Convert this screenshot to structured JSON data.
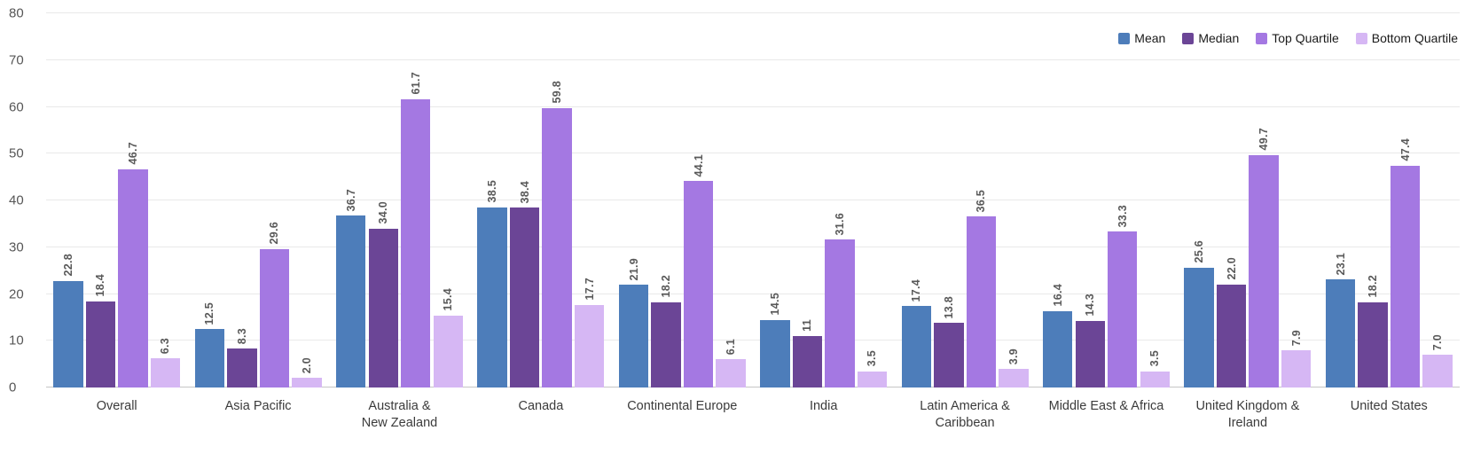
{
  "chart_data": {
    "type": "bar",
    "title": "",
    "xlabel": "",
    "ylabel": "",
    "ylim": [
      0,
      80
    ],
    "yticks": [
      "0",
      "10",
      "20",
      "30",
      "40",
      "50",
      "60",
      "70",
      "80"
    ],
    "grid": "horizontal",
    "legend_position": "top-right",
    "value_labels_rotated": true,
    "categories": [
      {
        "label": "Overall",
        "lines": [
          "Overall"
        ]
      },
      {
        "label": "Asia Pacific",
        "lines": [
          "Asia Pacific"
        ]
      },
      {
        "label": "Australia & New Zealand",
        "lines": [
          "Australia &",
          "New Zealand"
        ]
      },
      {
        "label": "Canada",
        "lines": [
          "Canada"
        ]
      },
      {
        "label": "Continental Europe",
        "lines": [
          "Continental Europe"
        ]
      },
      {
        "label": "India",
        "lines": [
          "India"
        ]
      },
      {
        "label": "Latin America & Caribbean",
        "lines": [
          "Latin America &",
          "Caribbean"
        ]
      },
      {
        "label": "Middle East & Africa",
        "lines": [
          "Middle East & Africa"
        ]
      },
      {
        "label": "United Kingdom & Ireland",
        "lines": [
          "United Kingdom &",
          "Ireland"
        ]
      },
      {
        "label": "United States",
        "lines": [
          "United States"
        ]
      }
    ],
    "series": [
      {
        "name": "Mean",
        "color": "#4d7dba",
        "values": [
          22.8,
          12.5,
          36.7,
          38.5,
          21.9,
          14.5,
          17.4,
          16.4,
          25.6,
          23.1
        ],
        "labels": [
          "22.8",
          "12.5",
          "36.7",
          "38.5",
          "21.9",
          "14.5",
          "17.4",
          "16.4",
          "25.6",
          "23.1"
        ]
      },
      {
        "name": "Median",
        "color": "#6b4596",
        "values": [
          18.4,
          8.3,
          34.0,
          38.4,
          18.2,
          11,
          13.8,
          14.3,
          22.0,
          18.2
        ],
        "labels": [
          "18.4",
          "8.3",
          "34.0",
          "38.4",
          "18.2",
          "11",
          "13.8",
          "14.3",
          "22.0",
          "18.2"
        ]
      },
      {
        "name": "Top Quartile",
        "color": "#a478e2",
        "values": [
          46.7,
          29.6,
          61.7,
          59.8,
          44.1,
          31.6,
          36.5,
          33.3,
          49.7,
          47.4
        ],
        "labels": [
          "46.7",
          "29.6",
          "61.7",
          "59.8",
          "44.1",
          "31.6",
          "36.5",
          "33.3",
          "49.7",
          "47.4"
        ]
      },
      {
        "name": "Bottom Quartile",
        "color": "#d6b7f4",
        "values": [
          6.3,
          2.0,
          15.4,
          17.7,
          6.1,
          3.5,
          3.9,
          3.5,
          7.9,
          7.0
        ],
        "labels": [
          "6.3",
          "2.0",
          "15.4",
          "17.7",
          "6.1",
          "3.5",
          "3.9",
          "3.5",
          "7.9",
          "7.0"
        ]
      }
    ],
    "colors": {
      "gridline": "#e9e9e9",
      "baseline": "#c6c6c6",
      "tick_text": "#565656",
      "value_label_text": "#595959",
      "category_text": "#3b3b3b",
      "legend_text": "#1a1a1a"
    }
  }
}
